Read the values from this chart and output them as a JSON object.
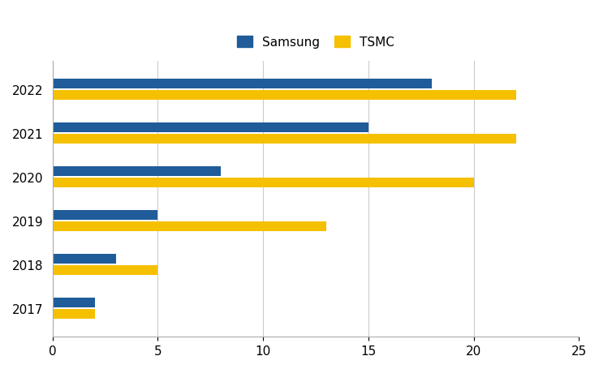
{
  "years": [
    "2017",
    "2018",
    "2019",
    "2020",
    "2021",
    "2022"
  ],
  "samsung": [
    2,
    3,
    5,
    8,
    15,
    18
  ],
  "tsmc": [
    2,
    5,
    13,
    20,
    22,
    22
  ],
  "samsung_color": "#1F5C99",
  "tsmc_color": "#F5C000",
  "xlim": [
    0,
    25
  ],
  "xticks": [
    0,
    5,
    10,
    15,
    20,
    25
  ],
  "legend_labels": [
    "Samsung",
    "TSMC"
  ],
  "background_color": "#ffffff",
  "grid_color": "#cccccc",
  "bar_height": 0.22,
  "bar_gap": 0.04
}
